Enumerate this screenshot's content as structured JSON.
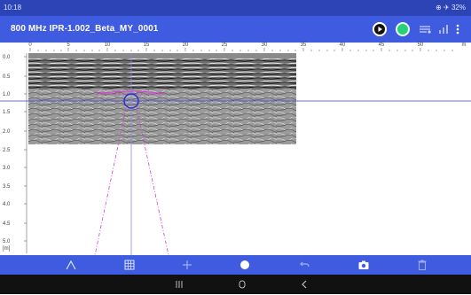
{
  "status_bar": {
    "time": "10:18",
    "right_info": "⊕ ✈ 32%"
  },
  "app_bar": {
    "title": "800 MHz  IPR-1.002_Beta_MY_0001",
    "actions": [
      "play-icon",
      "record-icon",
      "scan-settings-icon",
      "signal-icon",
      "more-icon"
    ]
  },
  "ruler": {
    "labels": [
      "0",
      "5",
      "10",
      "15",
      "20",
      "25",
      "30",
      "35",
      "40",
      "45",
      "50"
    ],
    "unit_label": "m"
  },
  "depth_axis": {
    "labels": [
      "0.0",
      "0.5",
      "1.0",
      "1.5",
      "2.0",
      "2.5",
      "3.0",
      "3.5",
      "4.0",
      "4.5",
      "5.0"
    ],
    "unit_label": "[m]"
  },
  "toolbar": {
    "tools": [
      "hyperbola-icon",
      "grid-icon",
      "move-icon",
      "marker-icon",
      "undo-icon",
      "camera-icon",
      "delete-icon"
    ]
  },
  "navbar": {
    "buttons": [
      "recents-icon",
      "home-icon",
      "back-icon"
    ]
  },
  "colors": {
    "app_bar": "#3f5be0",
    "status_bar": "#2c44b6",
    "hyperbola": "#d43cd4",
    "crosshair": "#3a3ae0",
    "record": "#28d07a"
  }
}
